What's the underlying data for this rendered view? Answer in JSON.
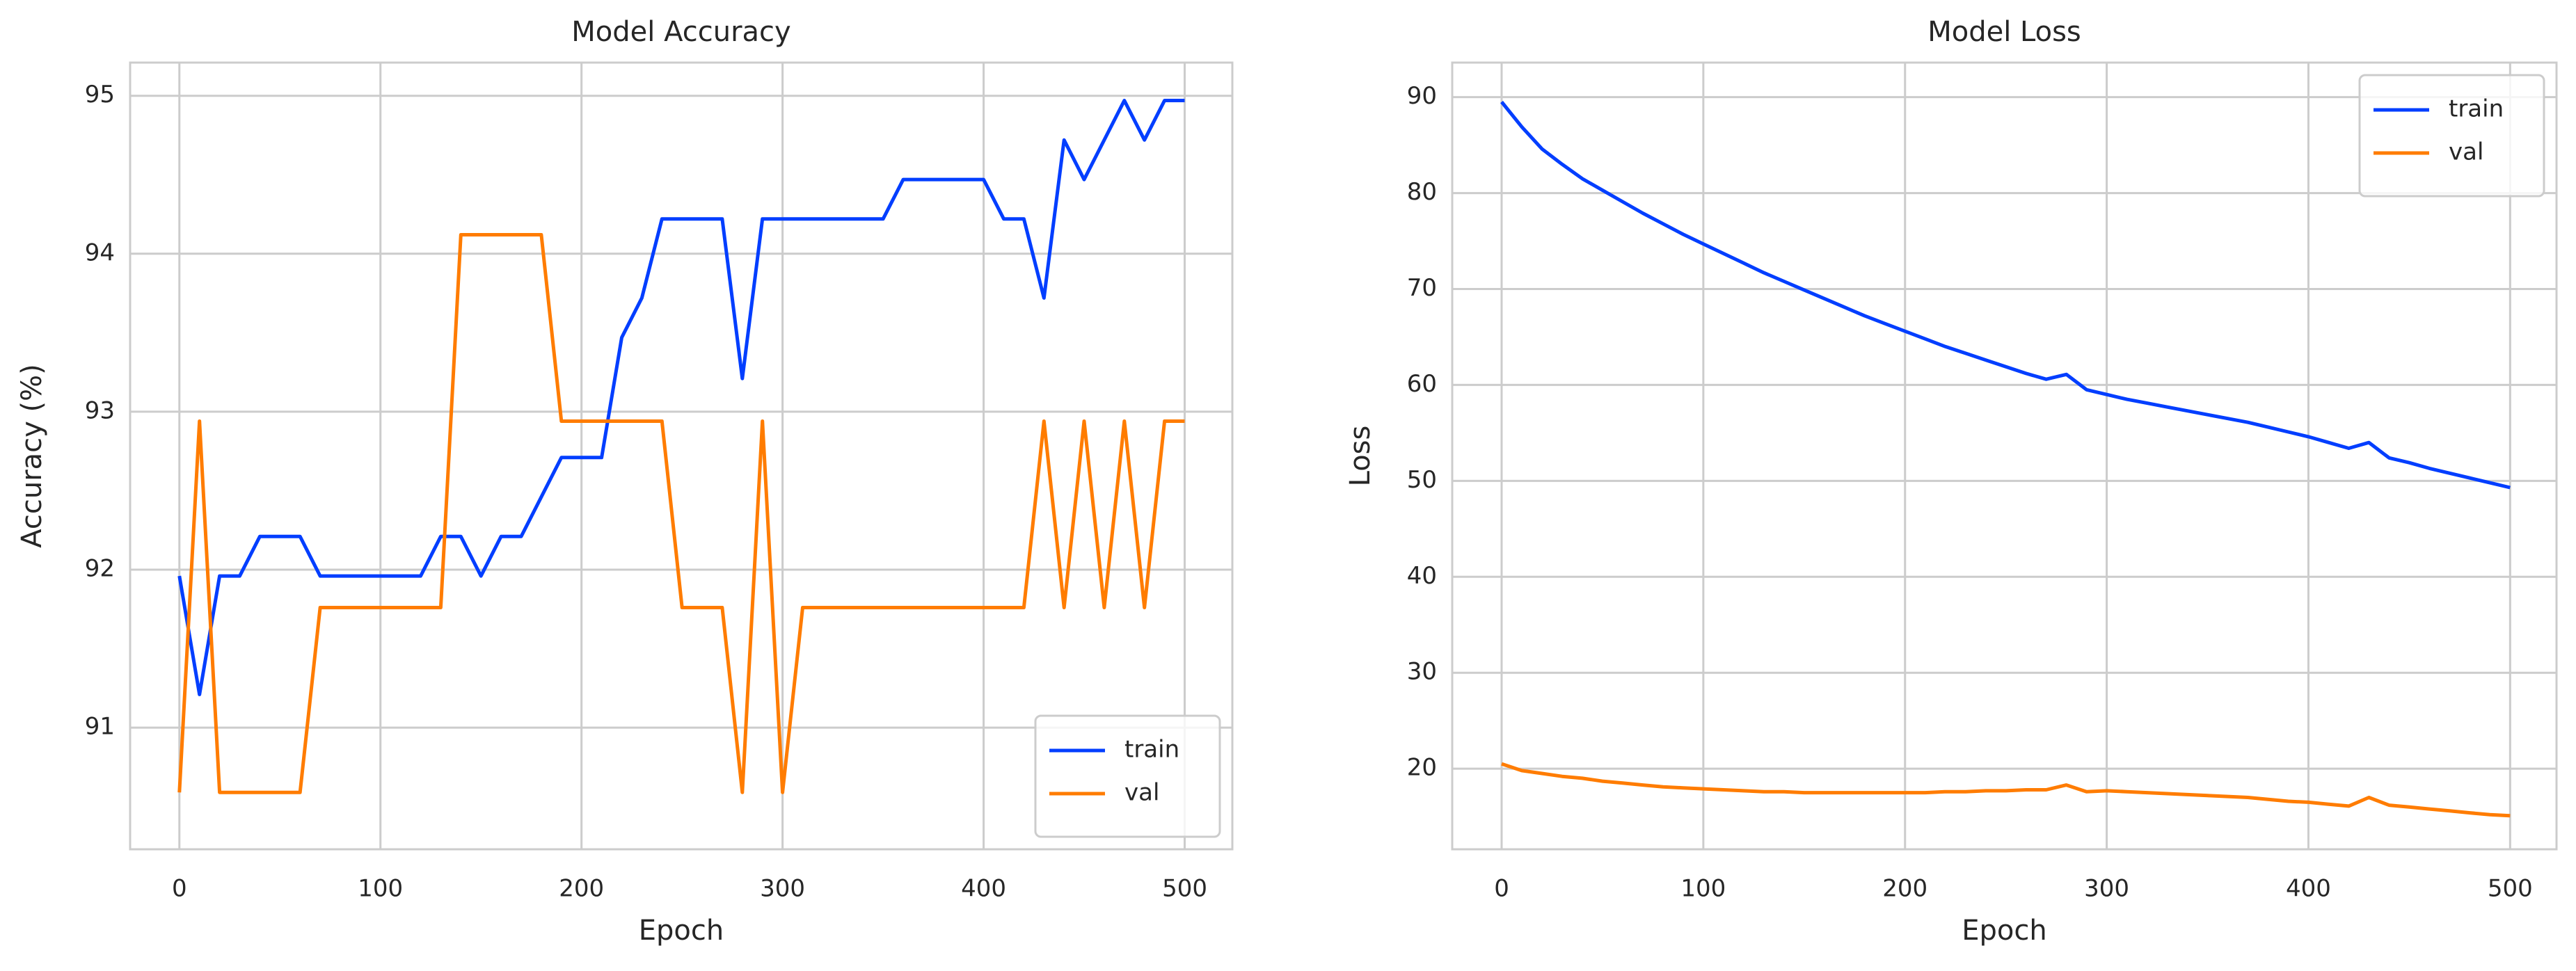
{
  "chart_data": [
    {
      "type": "line",
      "title": "Model Accuracy",
      "x_label": "Epoch",
      "y_label": "Accuracy (%)",
      "x": [
        0,
        10,
        20,
        30,
        40,
        50,
        60,
        70,
        80,
        90,
        100,
        110,
        120,
        130,
        140,
        150,
        160,
        170,
        180,
        190,
        200,
        210,
        220,
        230,
        240,
        250,
        260,
        270,
        280,
        290,
        300,
        310,
        320,
        330,
        340,
        350,
        360,
        370,
        380,
        390,
        400,
        410,
        420,
        430,
        440,
        450,
        460,
        470,
        480,
        490,
        500
      ],
      "series": [
        {
          "name": "train",
          "color": "#023eff",
          "values": [
            91.96,
            91.21,
            91.96,
            91.96,
            92.21,
            92.21,
            92.21,
            91.96,
            91.96,
            91.96,
            91.96,
            91.96,
            91.96,
            92.21,
            92.21,
            91.96,
            92.21,
            92.21,
            92.46,
            92.71,
            92.71,
            92.71,
            93.47,
            93.72,
            94.22,
            94.22,
            94.22,
            94.22,
            93.21,
            94.22,
            94.22,
            94.22,
            94.22,
            94.22,
            94.22,
            94.22,
            94.47,
            94.47,
            94.47,
            94.47,
            94.47,
            94.22,
            94.22,
            93.72,
            94.72,
            94.47,
            94.72,
            94.97,
            94.72,
            94.97,
            94.97
          ]
        },
        {
          "name": "val",
          "color": "#ff7c00",
          "values": [
            90.59,
            92.94,
            90.59,
            90.59,
            90.59,
            90.59,
            90.59,
            91.76,
            91.76,
            91.76,
            91.76,
            91.76,
            91.76,
            91.76,
            94.12,
            94.12,
            94.12,
            94.12,
            94.12,
            92.94,
            92.94,
            92.94,
            92.94,
            92.94,
            92.94,
            91.76,
            91.76,
            91.76,
            90.59,
            92.94,
            90.59,
            91.76,
            91.76,
            91.76,
            91.76,
            91.76,
            91.76,
            91.76,
            91.76,
            91.76,
            91.76,
            91.76,
            91.76,
            92.94,
            91.76,
            92.94,
            91.76,
            92.94,
            91.76,
            92.94,
            92.94
          ]
        }
      ],
      "xlim": [
        -24.5,
        523.7
      ],
      "xticks": [
        0,
        100,
        200,
        300,
        400,
        500
      ],
      "ylim": [
        90.23,
        95.21
      ],
      "yticks": [
        91,
        92,
        93,
        94,
        95
      ],
      "grid": true,
      "legend": "lower right"
    },
    {
      "type": "line",
      "title": "Model Loss",
      "x_label": "Epoch",
      "y_label": "Loss",
      "x": [
        0,
        10,
        20,
        30,
        40,
        50,
        60,
        70,
        80,
        90,
        100,
        110,
        120,
        130,
        140,
        150,
        160,
        170,
        180,
        190,
        200,
        210,
        220,
        230,
        240,
        250,
        260,
        270,
        280,
        290,
        300,
        310,
        320,
        330,
        340,
        350,
        360,
        370,
        380,
        390,
        400,
        410,
        420,
        430,
        440,
        450,
        460,
        470,
        480,
        490,
        500
      ],
      "series": [
        {
          "name": "train",
          "color": "#023eff",
          "values": [
            89.5,
            86.9,
            84.6,
            83.0,
            81.5,
            80.3,
            79.1,
            77.9,
            76.8,
            75.7,
            74.7,
            73.7,
            72.7,
            71.7,
            70.8,
            69.9,
            69.0,
            68.1,
            67.2,
            66.4,
            65.6,
            64.8,
            64.0,
            63.3,
            62.6,
            61.9,
            61.2,
            60.6,
            61.1,
            59.5,
            59.0,
            58.5,
            58.1,
            57.7,
            57.3,
            56.9,
            56.5,
            56.1,
            55.6,
            55.1,
            54.6,
            54.0,
            53.4,
            54.0,
            52.4,
            51.9,
            51.3,
            50.8,
            50.3,
            49.8,
            49.3
          ]
        },
        {
          "name": "val",
          "color": "#ff7c00",
          "values": [
            20.5,
            19.8,
            19.5,
            19.2,
            19.0,
            18.7,
            18.5,
            18.3,
            18.1,
            18.0,
            17.9,
            17.8,
            17.7,
            17.6,
            17.6,
            17.5,
            17.5,
            17.5,
            17.5,
            17.5,
            17.5,
            17.5,
            17.6,
            17.6,
            17.7,
            17.7,
            17.8,
            17.8,
            18.3,
            17.6,
            17.7,
            17.6,
            17.5,
            17.4,
            17.3,
            17.2,
            17.1,
            17.0,
            16.8,
            16.6,
            16.5,
            16.3,
            16.1,
            17.0,
            16.2,
            16.0,
            15.8,
            15.6,
            15.4,
            15.2,
            15.1
          ]
        }
      ],
      "xlim": [
        -24.5,
        523
      ],
      "xticks": [
        0,
        100,
        200,
        300,
        400,
        500
      ],
      "ylim": [
        11.6,
        93.6
      ],
      "yticks": [
        20,
        30,
        40,
        50,
        60,
        70,
        80,
        90
      ],
      "grid": true,
      "legend": "upper right"
    }
  ]
}
